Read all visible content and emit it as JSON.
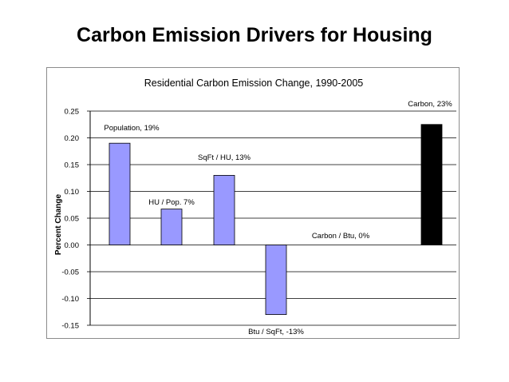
{
  "slide": {
    "title": "Carbon Emission Drivers for Housing"
  },
  "chart_data": {
    "type": "bar",
    "title": "Residential Carbon Emission Change, 1990-2005",
    "xlabel": "",
    "ylabel": "Percent Change",
    "ylim": [
      -0.15,
      0.25
    ],
    "yticks": [
      0.25,
      0.2,
      0.15,
      0.1,
      0.05,
      0.0,
      -0.05,
      -0.1,
      -0.15
    ],
    "ytick_labels": [
      "0.25",
      "0.20",
      "0.15",
      "0.10",
      "0.05",
      "0.00",
      "-0.05",
      "-0.10",
      "-0.15"
    ],
    "grid": true,
    "categories": [
      "Population",
      "HU / Pop.",
      "SqFt / HU",
      "Btu / SqFt",
      "Carbon / Btu",
      "Carbon"
    ],
    "values": [
      0.19,
      0.067,
      0.13,
      -0.13,
      0.0,
      0.225
    ],
    "data_labels": [
      "Population, 19%",
      "HU / Pop. 7%",
      "SqFt / HU, 13%",
      "Btu / SqFt, -13%",
      "Carbon / Btu, 0%",
      "Carbon, 23%"
    ],
    "colors": [
      "#9999ff",
      "#9999ff",
      "#9999ff",
      "#9999ff",
      "#9999ff",
      "#000000"
    ]
  }
}
